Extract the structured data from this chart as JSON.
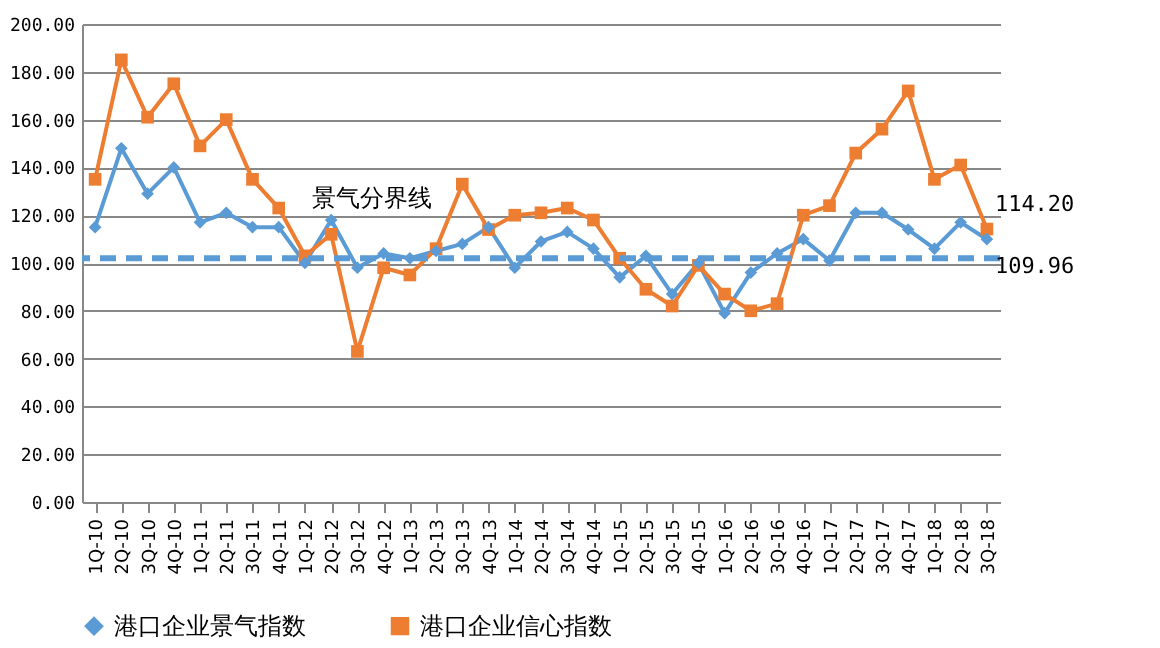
{
  "chart_data": {
    "type": "line",
    "categories": [
      "1Q-10",
      "2Q-10",
      "3Q-10",
      "4Q-10",
      "1Q-11",
      "2Q-11",
      "3Q-11",
      "4Q-11",
      "1Q-12",
      "2Q-12",
      "3Q-12",
      "4Q-12",
      "1Q-13",
      "2Q-13",
      "3Q-13",
      "4Q-13",
      "1Q-14",
      "2Q-14",
      "3Q-14",
      "4Q-14",
      "1Q-15",
      "2Q-15",
      "3Q-15",
      "4Q-15",
      "1Q-16",
      "2Q-16",
      "3Q-16",
      "4Q-16",
      "1Q-17",
      "2Q-17",
      "3Q-17",
      "4Q-17",
      "1Q-18",
      "2Q-18",
      "3Q-18"
    ],
    "series": [
      {
        "name": "港口企业景气指数",
        "color": "#5b9bd5",
        "marker": "diamond",
        "values": [
          115,
          148,
          129,
          140,
          117,
          121,
          115,
          115,
          100,
          118,
          98,
          104,
          102,
          105,
          108,
          115,
          98,
          109,
          113,
          106,
          94,
          103,
          87,
          100,
          79,
          96,
          104,
          110,
          101,
          121,
          121,
          114,
          106,
          117,
          109.96
        ],
        "value_labels": [
          null,
          null,
          null,
          null,
          null,
          null,
          null,
          null,
          null,
          null,
          null,
          null,
          null,
          null,
          null,
          null,
          null,
          null,
          null,
          null,
          null,
          null,
          null,
          null,
          null,
          null,
          null,
          null,
          null,
          null,
          null,
          null,
          null,
          null,
          "109.96"
        ]
      },
      {
        "name": "港口企业信心指数",
        "color": "#ed7d31",
        "marker": "square",
        "values": [
          135,
          185,
          161,
          175,
          149,
          160,
          135,
          123,
          103,
          112,
          63,
          98,
          95,
          106,
          133,
          114,
          120,
          121,
          123,
          118,
          102,
          89,
          82,
          99,
          87,
          80,
          83,
          120,
          124,
          146,
          156,
          172,
          135,
          141,
          114.2
        ],
        "value_labels": [
          null,
          null,
          null,
          null,
          null,
          null,
          null,
          null,
          null,
          null,
          null,
          null,
          null,
          null,
          null,
          null,
          null,
          null,
          null,
          null,
          null,
          null,
          null,
          null,
          null,
          null,
          null,
          null,
          null,
          null,
          null,
          null,
          null,
          null,
          "114.20"
        ]
      }
    ],
    "ylim": [
      0,
      200
    ],
    "yticks": [
      {
        "value": 0,
        "label": "0.00"
      },
      {
        "value": 20,
        "label": "20.00"
      },
      {
        "value": 40,
        "label": "40.00"
      },
      {
        "value": 60,
        "label": "60.00"
      },
      {
        "value": 80,
        "label": "80.00"
      },
      {
        "value": 100,
        "label": "100.00"
      },
      {
        "value": 120,
        "label": "120.00"
      },
      {
        "value": 140,
        "label": "140.00"
      },
      {
        "value": 160,
        "label": "160.00"
      },
      {
        "value": 180,
        "label": "180.00"
      },
      {
        "value": 200,
        "label": "200.00"
      }
    ],
    "grid": "y",
    "legend": "bottom",
    "line_style": "solid",
    "ref_lines": [
      {
        "axis": "y",
        "value": 102,
        "label": "景气分界线",
        "color": "#5b9bd5",
        "line_style": "dashed"
      }
    ]
  }
}
